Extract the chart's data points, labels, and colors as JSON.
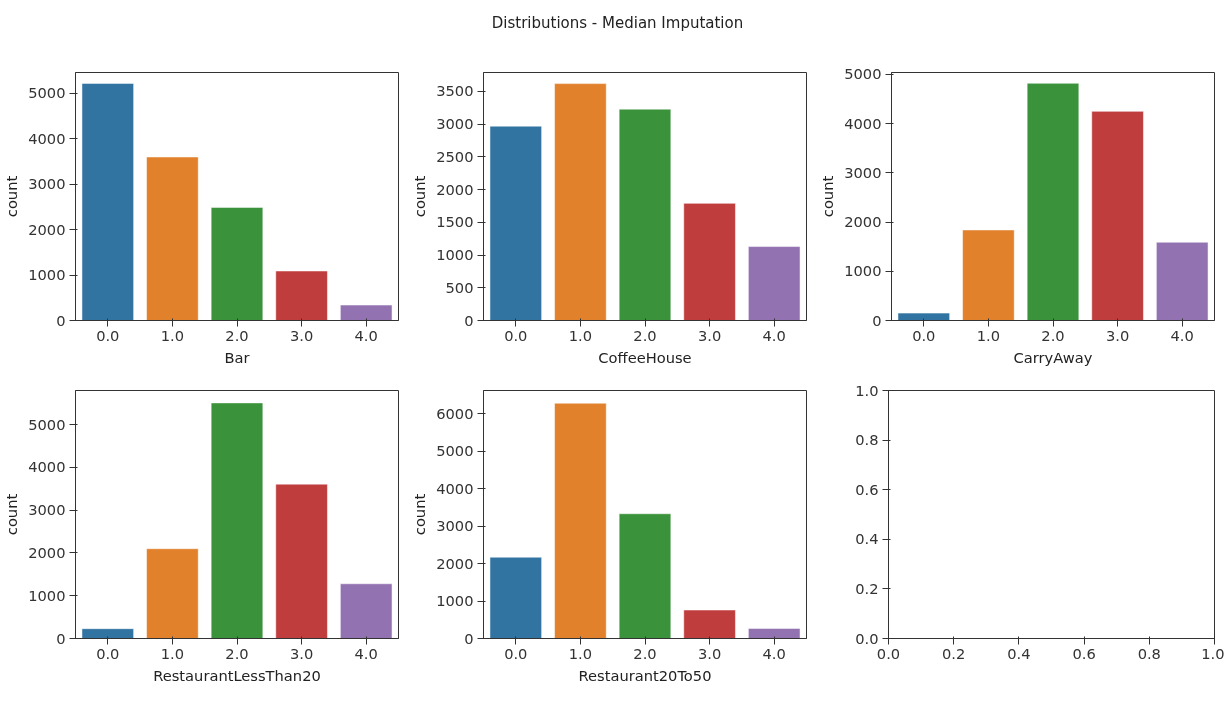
{
  "chart_data": [
    {
      "type": "bar",
      "xlabel": "Bar",
      "ylabel": "count",
      "categories": [
        "0.0",
        "1.0",
        "2.0",
        "3.0",
        "4.0"
      ],
      "values": [
        5220,
        3600,
        2490,
        1090,
        340
      ],
      "colors": [
        "#3274a1",
        "#e1812c",
        "#3a923a",
        "#c03d3e",
        "#9372b2"
      ],
      "ylim": [
        0,
        5460
      ],
      "yticks": [
        0,
        1000,
        2000,
        3000,
        4000,
        5000
      ]
    },
    {
      "type": "bar",
      "title": "Distributions - Median Imputation",
      "xlabel": "CoffeeHouse",
      "ylabel": "count",
      "categories": [
        "0.0",
        "1.0",
        "2.0",
        "3.0",
        "4.0"
      ],
      "values": [
        2970,
        3620,
        3230,
        1790,
        1130
      ],
      "colors": [
        "#3274a1",
        "#e1812c",
        "#3a923a",
        "#c03d3e",
        "#9372b2"
      ],
      "ylim": [
        0,
        3790
      ],
      "yticks": [
        0,
        500,
        1000,
        1500,
        2000,
        2500,
        3000,
        3500
      ]
    },
    {
      "type": "bar",
      "xlabel": "CarryAway",
      "ylabel": "count",
      "categories": [
        "0.0",
        "1.0",
        "2.0",
        "3.0",
        "4.0"
      ],
      "values": [
        150,
        1840,
        4820,
        4250,
        1590
      ],
      "colors": [
        "#3274a1",
        "#e1812c",
        "#3a923a",
        "#c03d3e",
        "#9372b2"
      ],
      "ylim": [
        0,
        5040
      ],
      "yticks": [
        0,
        1000,
        2000,
        3000,
        4000,
        5000
      ]
    },
    {
      "type": "bar",
      "xlabel": "RestaurantLessThan20",
      "ylabel": "count",
      "categories": [
        "0.0",
        "1.0",
        "2.0",
        "3.0",
        "4.0"
      ],
      "values": [
        230,
        2100,
        5510,
        3610,
        1280
      ],
      "colors": [
        "#3274a1",
        "#e1812c",
        "#3a923a",
        "#c03d3e",
        "#9372b2"
      ],
      "ylim": [
        0,
        5800
      ],
      "yticks": [
        0,
        1000,
        2000,
        3000,
        4000,
        5000
      ]
    },
    {
      "type": "bar",
      "xlabel": "Restaurant20To50",
      "ylabel": "count",
      "categories": [
        "0.0",
        "1.0",
        "2.0",
        "3.0",
        "4.0"
      ],
      "values": [
        2170,
        6280,
        3330,
        760,
        270
      ],
      "colors": [
        "#3274a1",
        "#e1812c",
        "#3a923a",
        "#c03d3e",
        "#9372b2"
      ],
      "ylim": [
        0,
        6620
      ],
      "yticks": [
        0,
        1000,
        2000,
        3000,
        4000,
        5000,
        6000
      ]
    },
    {
      "type": "scatter",
      "xlim": [
        0,
        1
      ],
      "ylim": [
        0,
        1
      ],
      "xticks": [
        {
          "value": 0,
          "label": "0.0"
        },
        {
          "value": 0.2,
          "label": "0.2"
        },
        {
          "value": 0.4,
          "label": "0.4"
        },
        {
          "value": 0.6,
          "label": "0.6"
        },
        {
          "value": 0.8,
          "label": "0.8"
        },
        {
          "value": 1,
          "label": "1.0"
        }
      ],
      "yticks": [
        {
          "value": 0,
          "label": "0.0"
        },
        {
          "value": 0.2,
          "label": "0.2"
        },
        {
          "value": 0.4,
          "label": "0.4"
        },
        {
          "value": 0.6,
          "label": "0.6"
        },
        {
          "value": 0.8,
          "label": "0.8"
        },
        {
          "value": 1,
          "label": "1.0"
        }
      ]
    }
  ]
}
